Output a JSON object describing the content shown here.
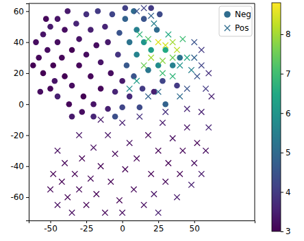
{
  "chart_data": {
    "type": "scatter",
    "xlim": [
      -65,
      92
    ],
    "xticks": [
      -50,
      -25,
      0,
      25,
      50
    ],
    "ylim": [
      -75,
      65
    ],
    "yticks": [
      -60,
      -40,
      -20,
      0,
      20,
      40,
      60
    ],
    "legend": "upper right",
    "colorbar": {
      "range": [
        3,
        8.8
      ],
      "ticks": [
        3,
        4,
        5,
        6,
        7,
        8
      ]
    },
    "series": [
      {
        "name": "Neg",
        "marker": "circle",
        "x": [
          -60,
          -58,
          -55,
          -55,
          -52,
          -50,
          -50,
          -48,
          -45,
          -45,
          -45,
          -42,
          -40,
          -40,
          -38,
          -37,
          -35,
          -35,
          -32,
          -30,
          -30,
          -28,
          -27,
          -25,
          -25,
          -22,
          -22,
          -20,
          -18,
          -17,
          -15,
          -15,
          -12,
          -10,
          -10,
          -8,
          -7,
          -5,
          -3,
          -2,
          0,
          0,
          2,
          3,
          5,
          5,
          8,
          8,
          10,
          10,
          12,
          14,
          15,
          15,
          18,
          20,
          22,
          24,
          25,
          28,
          30,
          30,
          35,
          38,
          40,
          -62,
          -57,
          -53,
          -47,
          -35,
          -20,
          -5,
          2,
          20,
          26
        ],
        "values": [
          40,
          30,
          45,
          20,
          35,
          50,
          10,
          25,
          55,
          40,
          5,
          30,
          18,
          48,
          60,
          0,
          35,
          12,
          52,
          25,
          42,
          -5,
          5,
          58,
          32,
          18,
          48,
          0,
          38,
          60,
          10,
          27,
          50,
          -3,
          40,
          20,
          58,
          8,
          32,
          46,
          15,
          -2,
          55,
          25,
          40,
          5,
          60,
          18,
          32,
          48,
          -2,
          10,
          40,
          55,
          22,
          35,
          8,
          48,
          25,
          15,
          35,
          0,
          25,
          12,
          30,
          25,
          8,
          55,
          15,
          -8,
          -8,
          -8,
          62,
          62,
          58
        ],
        "color_values": [
          3.2,
          3.1,
          3.3,
          3.0,
          3.2,
          3.4,
          3.1,
          3.0,
          3.3,
          3.2,
          3.5,
          3.1,
          3.0,
          3.2,
          3.4,
          3.1,
          3.0,
          3.2,
          3.6,
          3.1,
          3.3,
          3.2,
          3.0,
          3.8,
          3.2,
          3.1,
          3.5,
          3.3,
          3.2,
          4.0,
          3.1,
          3.3,
          3.6,
          3.5,
          3.4,
          3.2,
          4.2,
          3.6,
          3.9,
          4.5,
          3.4,
          4.2,
          4.8,
          4.6,
          5.2,
          3.7,
          5.0,
          4.5,
          5.6,
          5.5,
          4.3,
          4.0,
          6.0,
          4.5,
          5.3,
          6.2,
          3.5,
          5.0,
          5.8,
          4.2,
          6.5,
          4.8,
          5.5,
          4.0,
          5.2,
          3.0,
          3.2,
          3.1,
          3.3,
          3.4,
          3.6,
          4.4,
          4.1,
          4.0,
          4.3
        ]
      },
      {
        "name": "Pos",
        "marker": "x",
        "x": [
          10,
          15,
          20,
          22,
          12,
          18,
          20,
          25,
          28,
          30,
          32,
          35,
          35,
          38,
          40,
          42,
          45,
          48,
          50,
          52,
          55,
          58,
          60,
          45,
          40,
          35,
          28,
          15,
          10,
          5,
          18,
          25,
          30,
          45,
          55,
          62,
          50,
          55,
          -50,
          -48,
          -45,
          -42,
          -40,
          -38,
          -35,
          -33,
          -30,
          -28,
          -25,
          -22,
          -20,
          -18,
          -15,
          -12,
          -10,
          -8,
          -5,
          -2,
          0,
          2,
          5,
          8,
          10,
          12,
          15,
          18,
          20,
          22,
          25,
          28,
          30,
          32,
          35,
          38,
          40,
          42,
          45,
          48,
          50,
          52,
          55,
          58,
          60,
          -45,
          -30,
          -15,
          0,
          25
        ],
        "values": [
          60,
          62,
          57,
          52,
          45,
          42,
          30,
          40,
          28,
          38,
          45,
          40,
          30,
          35,
          25,
          42,
          30,
          22,
          30,
          18,
          25,
          10,
          20,
          10,
          5,
          18,
          20,
          25,
          15,
          10,
          5,
          8,
          -5,
          -3,
          -5,
          5,
          40,
          35,
          -55,
          -45,
          -65,
          -50,
          -38,
          -60,
          -70,
          -45,
          -55,
          -35,
          -65,
          -48,
          -28,
          -58,
          -40,
          -70,
          -20,
          -50,
          -32,
          -62,
          -12,
          -42,
          -25,
          -55,
          -35,
          -8,
          -65,
          -20,
          -45,
          -58,
          -30,
          -12,
          -50,
          -38,
          -22,
          -60,
          -45,
          -30,
          -15,
          -52,
          -38,
          -25,
          -45,
          -30,
          -15,
          -30,
          -20,
          -10,
          -70,
          -70
        ],
        "color_values": [
          4.5,
          4.2,
          4.8,
          5.5,
          6.8,
          7.2,
          8.0,
          8.5,
          7.8,
          8.4,
          6.5,
          8.0,
          7.5,
          8.2,
          6.0,
          7.0,
          6.5,
          5.5,
          4.8,
          4.5,
          4.2,
          4.0,
          3.8,
          4.5,
          5.0,
          6.8,
          7.0,
          7.5,
          6.2,
          5.8,
          4.8,
          5.0,
          3.8,
          3.6,
          3.5,
          3.5,
          4.5,
          4.0,
          3.1,
          3.0,
          3.2,
          3.0,
          3.1,
          3.0,
          3.2,
          3.0,
          3.1,
          3.0,
          3.0,
          3.1,
          3.2,
          3.0,
          3.0,
          3.1,
          3.3,
          3.0,
          3.1,
          3.0,
          3.5,
          3.0,
          3.2,
          3.1,
          3.0,
          3.8,
          3.2,
          3.1,
          3.0,
          3.3,
          3.0,
          3.4,
          3.1,
          3.0,
          3.2,
          3.4,
          3.0,
          3.1,
          3.3,
          3.5,
          3.2,
          3.0,
          3.4,
          3.2,
          3.6,
          3.2,
          3.3,
          3.4,
          3.2,
          3.5
        ]
      }
    ]
  }
}
